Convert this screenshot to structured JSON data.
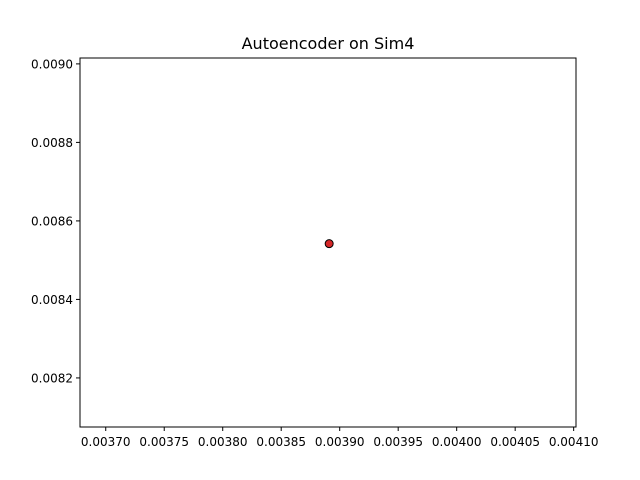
{
  "chart_data": {
    "type": "scatter",
    "title": "Autoencoder on Sim4",
    "xlabel": "",
    "ylabel": "",
    "xlim": [
      0.003678,
      0.004102
    ],
    "ylim": [
      0.008075,
      0.009015
    ],
    "x_ticks": [
      0.0037,
      0.00375,
      0.0038,
      0.00385,
      0.0039,
      0.00395,
      0.004,
      0.00405,
      0.0041
    ],
    "x_tick_labels": [
      "0.00370",
      "0.00375",
      "0.00380",
      "0.00385",
      "0.00390",
      "0.00395",
      "0.00400",
      "0.00405",
      "0.00410"
    ],
    "y_ticks": [
      0.0082,
      0.0084,
      0.0086,
      0.0088,
      0.009
    ],
    "y_tick_labels": [
      "0.0082",
      "0.0084",
      "0.0086",
      "0.0088",
      "0.0090"
    ],
    "grid": false,
    "series": [
      {
        "color": "#d62728",
        "edge_color": "#000000",
        "points": [
          {
            "x": 0.003891,
            "y": 0.008542
          }
        ]
      }
    ]
  }
}
